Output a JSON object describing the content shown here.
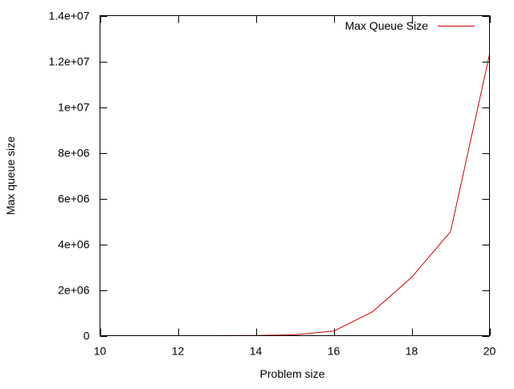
{
  "chart_data": {
    "type": "line",
    "title": "",
    "xlabel": "Problem size",
    "ylabel": "Max queue size",
    "xlim": [
      10,
      20
    ],
    "ylim": [
      0,
      14000000
    ],
    "x_ticks": [
      10,
      12,
      14,
      16,
      18,
      20
    ],
    "x_tick_labels": [
      "10",
      "12",
      "14",
      "16",
      "18",
      "20"
    ],
    "y_ticks": [
      0,
      2000000,
      4000000,
      6000000,
      8000000,
      10000000,
      12000000,
      14000000
    ],
    "y_tick_labels": [
      "0",
      "2e+06",
      "4e+06",
      "6e+06",
      "8e+06",
      "1e+07",
      "1.2e+07",
      "1.4e+07"
    ],
    "grid": false,
    "legend_position": "top-right",
    "series": [
      {
        "name": "Max Queue Size",
        "color": "#cc0000",
        "x": [
          12.5,
          13,
          14,
          15,
          16,
          17,
          18,
          19,
          20
        ],
        "y": [
          1000,
          3000,
          10000,
          40000,
          200000,
          1050000,
          2550000,
          4550000,
          12300000
        ]
      }
    ]
  }
}
